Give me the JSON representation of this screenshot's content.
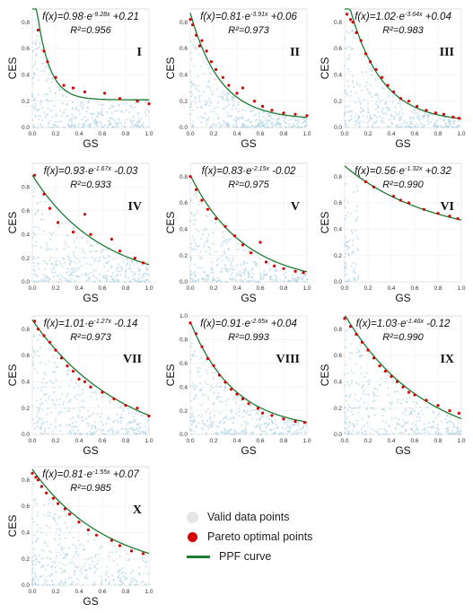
{
  "legend": {
    "valid": "Valid data points",
    "pareto": "Pareto optimal points",
    "ppf": "PPF curve"
  },
  "colors": {
    "valid_points": "#a9cfe0",
    "pareto_points": "#d40000",
    "ppf_curve": "#1f7a33",
    "legend_valid_swatch": "#e6e6e6"
  },
  "chart_data": [
    {
      "type": "scatter",
      "panel": "I",
      "xlabel": "GS",
      "ylabel": "CES",
      "formula": {
        "a": "0.98",
        "b": "9.28",
        "c": "+0.21",
        "a_val": 0.98,
        "b_val": 9.28,
        "c_val": 0.21
      },
      "r2": "R²=0.956",
      "x_ticks": [
        "0.0",
        "0.2",
        "0.4",
        "0.6",
        "0.8",
        "1.0"
      ],
      "y_ticks": [
        "0.0",
        "0.2",
        "0.4",
        "0.6",
        "0.8"
      ],
      "xlim": [
        0,
        1
      ],
      "ylim": [
        0,
        0.9
      ],
      "pareto": [
        [
          0.05,
          0.74
        ],
        [
          0.1,
          0.58
        ],
        [
          0.13,
          0.5
        ],
        [
          0.2,
          0.38
        ],
        [
          0.27,
          0.32
        ],
        [
          0.35,
          0.3
        ],
        [
          0.45,
          0.27
        ],
        [
          0.62,
          0.26
        ],
        [
          0.75,
          0.22
        ],
        [
          0.9,
          0.2
        ],
        [
          1.0,
          0.18
        ]
      ]
    },
    {
      "type": "scatter",
      "panel": "II",
      "xlabel": "GS",
      "ylabel": "CES",
      "formula": {
        "a": "0.81",
        "b": "3.91",
        "c": "+0.06",
        "a_val": 0.81,
        "b_val": 3.91,
        "c_val": 0.06
      },
      "r2": "R²=0.973",
      "x_ticks": [
        "0.0",
        "0.2",
        "0.4",
        "0.6",
        "0.8",
        "1.0"
      ],
      "y_ticks": [
        "0.0",
        "0.2",
        "0.4",
        "0.6",
        "0.8"
      ],
      "xlim": [
        0,
        1
      ],
      "ylim": [
        0,
        0.9
      ],
      "pareto": [
        [
          0.0,
          0.82
        ],
        [
          0.02,
          0.78
        ],
        [
          0.05,
          0.7
        ],
        [
          0.08,
          0.62
        ],
        [
          0.1,
          0.66
        ],
        [
          0.14,
          0.58
        ],
        [
          0.18,
          0.5
        ],
        [
          0.22,
          0.44
        ],
        [
          0.28,
          0.38
        ],
        [
          0.33,
          0.32
        ],
        [
          0.4,
          0.26
        ],
        [
          0.45,
          0.3
        ],
        [
          0.55,
          0.2
        ],
        [
          0.62,
          0.16
        ],
        [
          0.7,
          0.13
        ],
        [
          0.8,
          0.11
        ],
        [
          0.9,
          0.1
        ],
        [
          1.0,
          0.09
        ]
      ]
    },
    {
      "type": "scatter",
      "panel": "III",
      "xlabel": "GS",
      "ylabel": "CES",
      "formula": {
        "a": "1.02",
        "b": "3.64",
        "c": "+0.04",
        "a_val": 1.02,
        "b_val": 3.64,
        "c_val": 0.04
      },
      "r2": "R²=0.983",
      "x_ticks": [
        "0.0",
        "0.2",
        "0.4",
        "0.6",
        "0.8",
        "1.0"
      ],
      "y_ticks": [
        "0.0",
        "0.2",
        "0.4",
        "0.6",
        "0.8"
      ],
      "xlim": [
        0,
        1
      ],
      "ylim": [
        0,
        0.9
      ],
      "pareto": [
        [
          0.02,
          0.86
        ],
        [
          0.05,
          0.82
        ],
        [
          0.07,
          0.8
        ],
        [
          0.1,
          0.72
        ],
        [
          0.14,
          0.66
        ],
        [
          0.18,
          0.56
        ],
        [
          0.22,
          0.5
        ],
        [
          0.27,
          0.44
        ],
        [
          0.32,
          0.38
        ],
        [
          0.37,
          0.32
        ],
        [
          0.42,
          0.27
        ],
        [
          0.48,
          0.22
        ],
        [
          0.55,
          0.2
        ],
        [
          0.62,
          0.16
        ],
        [
          0.7,
          0.13
        ],
        [
          0.78,
          0.11
        ],
        [
          0.85,
          0.1
        ],
        [
          0.93,
          0.08
        ],
        [
          0.98,
          0.07
        ]
      ]
    },
    {
      "type": "scatter",
      "panel": "IV",
      "xlabel": "GS",
      "ylabel": "CES",
      "formula": {
        "a": "0.93",
        "b": "1.67",
        "c": "-0.03",
        "a_val": 0.93,
        "b_val": 1.67,
        "c_val": -0.03
      },
      "r2": "R²=0.933",
      "x_ticks": [
        "0.0",
        "0.2",
        "0.4",
        "0.6",
        "0.8",
        "1.0"
      ],
      "y_ticks": [
        "0.0",
        "0.2",
        "0.4",
        "0.6",
        "0.8"
      ],
      "xlim": [
        0,
        1
      ],
      "ylim": [
        0,
        1.0
      ],
      "pareto": [
        [
          0.02,
          0.9
        ],
        [
          0.1,
          0.74
        ],
        [
          0.15,
          0.62
        ],
        [
          0.22,
          0.5
        ],
        [
          0.35,
          0.42
        ],
        [
          0.45,
          0.57
        ],
        [
          0.5,
          0.4
        ],
        [
          0.68,
          0.36
        ],
        [
          0.75,
          0.26
        ],
        [
          0.88,
          0.2
        ],
        [
          0.95,
          0.16
        ]
      ]
    },
    {
      "type": "scatter",
      "panel": "V",
      "xlabel": "GS",
      "ylabel": "CES",
      "formula": {
        "a": "0.83",
        "b": "2.15",
        "c": "-0.02",
        "a_val": 0.83,
        "b_val": 2.15,
        "c_val": -0.02
      },
      "r2": "R²=0.975",
      "x_ticks": [
        "0.0",
        "0.2",
        "0.4",
        "0.6",
        "0.8",
        "1.0"
      ],
      "y_ticks": [
        "0.0",
        "0.2",
        "0.4",
        "0.6",
        "0.8"
      ],
      "xlim": [
        0,
        1
      ],
      "ylim": [
        0,
        0.9
      ],
      "pareto": [
        [
          0.0,
          0.8
        ],
        [
          0.05,
          0.7
        ],
        [
          0.1,
          0.62
        ],
        [
          0.15,
          0.55
        ],
        [
          0.22,
          0.48
        ],
        [
          0.3,
          0.42
        ],
        [
          0.38,
          0.35
        ],
        [
          0.45,
          0.28
        ],
        [
          0.52,
          0.22
        ],
        [
          0.6,
          0.3
        ],
        [
          0.65,
          0.15
        ],
        [
          0.72,
          0.12
        ],
        [
          0.8,
          0.1
        ],
        [
          0.9,
          0.08
        ],
        [
          0.97,
          0.07
        ]
      ]
    },
    {
      "type": "scatter",
      "panel": "VI",
      "xlabel": "GS",
      "ylabel": "CES",
      "formula": {
        "a": "0.56",
        "b": "1.32",
        "c": "+0.32",
        "a_val": 0.56,
        "b_val": 1.32,
        "c_val": 0.32
      },
      "r2": "R²=0.990",
      "x_ticks": [
        "0.0",
        "0.2",
        "0.4",
        "0.6",
        "0.8",
        "1.0"
      ],
      "y_ticks": [
        "0.0",
        "0.2",
        "0.4",
        "0.6",
        "0.8"
      ],
      "xlim": [
        0,
        1
      ],
      "ylim": [
        0,
        0.9
      ],
      "pareto": [
        [
          0.18,
          0.76
        ],
        [
          0.25,
          0.72
        ],
        [
          0.42,
          0.65
        ],
        [
          0.48,
          0.62
        ],
        [
          0.55,
          0.6
        ],
        [
          0.68,
          0.55
        ],
        [
          0.8,
          0.52
        ],
        [
          0.9,
          0.5
        ],
        [
          0.97,
          0.48
        ]
      ]
    },
    {
      "type": "scatter",
      "panel": "VII",
      "xlabel": "GS",
      "ylabel": "CES",
      "formula": {
        "a": "1.01",
        "b": "1.27",
        "c": "-0.14",
        "a_val": 1.01,
        "b_val": 1.27,
        "c_val": -0.14
      },
      "r2": "R²=0.973",
      "x_ticks": [
        "0.0",
        "0.2",
        "0.4",
        "0.6",
        "0.8",
        "1.0"
      ],
      "y_ticks": [
        "0.0",
        "0.2",
        "0.4",
        "0.6",
        "0.8"
      ],
      "xlim": [
        0,
        1
      ],
      "ylim": [
        0,
        0.9
      ],
      "pareto": [
        [
          0.02,
          0.86
        ],
        [
          0.05,
          0.8
        ],
        [
          0.1,
          0.75
        ],
        [
          0.15,
          0.7
        ],
        [
          0.2,
          0.64
        ],
        [
          0.25,
          0.58
        ],
        [
          0.3,
          0.52
        ],
        [
          0.35,
          0.48
        ],
        [
          0.4,
          0.42
        ],
        [
          0.45,
          0.4
        ],
        [
          0.5,
          0.36
        ],
        [
          0.6,
          0.32
        ],
        [
          0.7,
          0.27
        ],
        [
          0.8,
          0.22
        ],
        [
          0.9,
          0.2
        ],
        [
          1.0,
          0.14
        ]
      ]
    },
    {
      "type": "scatter",
      "panel": "VIII",
      "xlabel": "GS",
      "ylabel": "CES",
      "formula": {
        "a": "0.91",
        "b": "2.65",
        "c": "+0.04",
        "a_val": 0.91,
        "b_val": 2.65,
        "c_val": 0.04
      },
      "r2": "R²=0.993",
      "x_ticks": [
        "0.0",
        "0.2",
        "0.4",
        "0.6",
        "0.8",
        "1.0"
      ],
      "y_ticks": [
        "0.0",
        "0.2",
        "0.4",
        "0.6",
        "0.8",
        "1.0"
      ],
      "xlim": [
        0,
        1
      ],
      "ylim": [
        0,
        1.0
      ],
      "pareto": [
        [
          0.0,
          0.94
        ],
        [
          0.05,
          0.85
        ],
        [
          0.1,
          0.74
        ],
        [
          0.15,
          0.64
        ],
        [
          0.2,
          0.58
        ],
        [
          0.25,
          0.5
        ],
        [
          0.3,
          0.44
        ],
        [
          0.35,
          0.38
        ],
        [
          0.4,
          0.34
        ],
        [
          0.45,
          0.3
        ],
        [
          0.5,
          0.26
        ],
        [
          0.58,
          0.22
        ],
        [
          0.62,
          0.18
        ],
        [
          0.7,
          0.16
        ],
        [
          0.8,
          0.13
        ],
        [
          0.9,
          0.11
        ],
        [
          0.98,
          0.1
        ]
      ]
    },
    {
      "type": "scatter",
      "panel": "IX",
      "xlabel": "GS",
      "ylabel": "CES",
      "formula": {
        "a": "1.03",
        "b": "1.46",
        "c": "-0.12",
        "a_val": 1.03,
        "b_val": 1.46,
        "c_val": -0.12
      },
      "r2": "R²=0.990",
      "x_ticks": [
        "0.0",
        "0.2",
        "0.4",
        "0.6",
        "0.8",
        "1.0"
      ],
      "y_ticks": [
        "0.0",
        "0.2",
        "0.4",
        "0.6",
        "0.8"
      ],
      "xlim": [
        0,
        1
      ],
      "ylim": [
        0,
        0.9
      ],
      "pareto": [
        [
          0.0,
          0.88
        ],
        [
          0.05,
          0.82
        ],
        [
          0.1,
          0.76
        ],
        [
          0.15,
          0.7
        ],
        [
          0.2,
          0.64
        ],
        [
          0.25,
          0.58
        ],
        [
          0.3,
          0.52
        ],
        [
          0.35,
          0.48
        ],
        [
          0.4,
          0.44
        ],
        [
          0.45,
          0.4
        ],
        [
          0.5,
          0.36
        ],
        [
          0.55,
          0.32
        ],
        [
          0.6,
          0.3
        ],
        [
          0.7,
          0.26
        ],
        [
          0.8,
          0.22
        ],
        [
          0.9,
          0.18
        ],
        [
          0.98,
          0.16
        ]
      ]
    },
    {
      "type": "scatter",
      "panel": "X",
      "xlabel": "GS",
      "ylabel": "CES",
      "formula": {
        "a": "0.81",
        "b": "1.55",
        "c": "+0.07",
        "a_val": 0.81,
        "b_val": 1.55,
        "c_val": 0.07
      },
      "r2": "R²=0.985",
      "x_ticks": [
        "0.0",
        "0.2",
        "0.4",
        "0.6",
        "0.8",
        "1.0"
      ],
      "y_ticks": [
        "0.0",
        "0.2",
        "0.4",
        "0.6",
        "0.8"
      ],
      "xlim": [
        0,
        1
      ],
      "ylim": [
        0,
        0.9
      ],
      "pareto": [
        [
          0.0,
          0.85
        ],
        [
          0.03,
          0.82
        ],
        [
          0.05,
          0.8
        ],
        [
          0.08,
          0.75
        ],
        [
          0.12,
          0.7
        ],
        [
          0.18,
          0.66
        ],
        [
          0.22,
          0.62
        ],
        [
          0.28,
          0.58
        ],
        [
          0.32,
          0.54
        ],
        [
          0.4,
          0.48
        ],
        [
          0.48,
          0.42
        ],
        [
          0.55,
          0.38
        ],
        [
          0.68,
          0.34
        ],
        [
          0.75,
          0.3
        ],
        [
          0.85,
          0.26
        ],
        [
          0.95,
          0.24
        ]
      ]
    }
  ]
}
